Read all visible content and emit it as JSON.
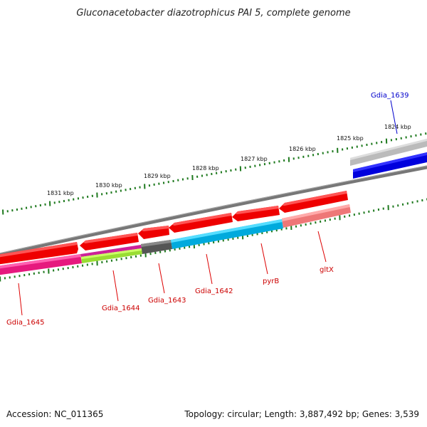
{
  "title": "Gluconacetobacter diazotrophicus PAI 5, complete genome",
  "footer": {
    "accession": "Accession: NC_011365",
    "topology": "Topology: circular; Length: 3,887,492 bp; Genes: 3,539"
  },
  "colors": {
    "backbone": "#777777",
    "scale_ticks": "#1f7a1f",
    "label_line": "#dd0000",
    "label_text": "#cc0000",
    "blue_label": "#0000cc"
  },
  "scale": {
    "unit": "kbp",
    "major_ticks": [
      {
        "label": "1831 kbp"
      },
      {
        "label": "1830 kbp"
      },
      {
        "label": "1829 kbp"
      },
      {
        "label": "1828 kbp"
      },
      {
        "label": "1827 kbp"
      },
      {
        "label": "1826 kbp"
      },
      {
        "label": "1825 kbp"
      },
      {
        "label": "1824 kbp"
      }
    ]
  },
  "gene_labels": [
    {
      "name": "Gdia_1645",
      "color": "#cc0000"
    },
    {
      "name": "Gdia_1644",
      "color": "#cc0000"
    },
    {
      "name": "Gdia_1643",
      "color": "#cc0000"
    },
    {
      "name": "Gdia_1642",
      "color": "#cc0000"
    },
    {
      "name": "pyrB",
      "color": "#cc0000"
    },
    {
      "name": "gltX",
      "color": "#cc0000"
    },
    {
      "name": "Gdia_1639",
      "color": "#0000cc"
    }
  ]
}
